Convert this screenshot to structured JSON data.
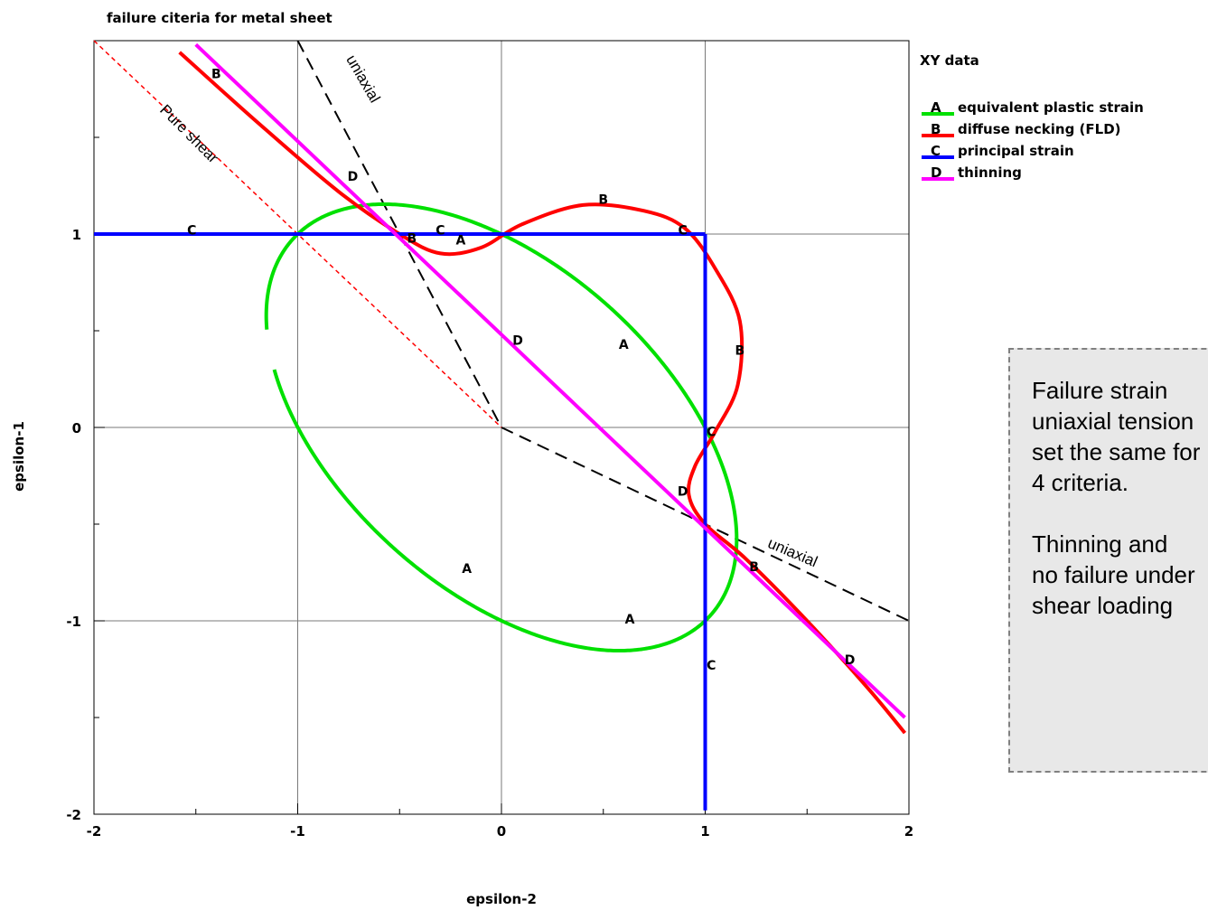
{
  "chart_data": {
    "type": "line",
    "title": "failure citeria for metal sheet",
    "xlabel": "epsilon-2",
    "ylabel": "epsilon-1",
    "xlim": [
      -2,
      2
    ],
    "ylim": [
      -2,
      2
    ],
    "x_ticks": [
      "-2",
      "-1",
      "0",
      "1",
      "2"
    ],
    "y_ticks": [
      "-2",
      "-1",
      "0",
      "1"
    ],
    "grid": true,
    "legend": {
      "title": "XY data",
      "position": "top-right",
      "entries": [
        {
          "key": "A",
          "label": "equivalent plastic strain",
          "color": "#00e000"
        },
        {
          "key": "B",
          "label": "diffuse necking (FLD)",
          "color": "#ff0000"
        },
        {
          "key": "C",
          "label": "principal strain",
          "color": "#0000ff"
        },
        {
          "key": "D",
          "label": "thinning",
          "color": "#ff00ff"
        }
      ]
    },
    "series": [
      {
        "key": "A",
        "color": "#00e000",
        "type": "ellipse",
        "center": [
          0,
          0
        ],
        "radii": [
          1.414,
          0.816
        ],
        "rotation_deg": -45,
        "gap": {
          "x": -1,
          "y_range": [
            0.3,
            0.5
          ]
        }
      },
      {
        "key": "B",
        "color": "#ff0000",
        "points": [
          [
            -1.58,
            1.94
          ],
          [
            -1.2,
            1.58
          ],
          [
            -0.8,
            1.22
          ],
          [
            -0.5,
            1.0
          ],
          [
            -0.3,
            0.9
          ],
          [
            -0.1,
            0.93
          ],
          [
            0.1,
            1.05
          ],
          [
            0.4,
            1.15
          ],
          [
            0.7,
            1.12
          ],
          [
            0.9,
            1.03
          ],
          [
            1.05,
            0.82
          ],
          [
            1.17,
            0.55
          ],
          [
            1.16,
            0.22
          ],
          [
            1.05,
            -0.02
          ],
          [
            0.95,
            -0.2
          ],
          [
            0.92,
            -0.35
          ],
          [
            1.0,
            -0.5
          ],
          [
            1.2,
            -0.68
          ],
          [
            1.5,
            -1.0
          ],
          [
            1.8,
            -1.35
          ],
          [
            1.98,
            -1.58
          ]
        ]
      },
      {
        "key": "C",
        "color": "#0000ff",
        "segments": [
          [
            [
              -2,
              1
            ],
            [
              1,
              1
            ]
          ],
          [
            [
              1,
              1
            ],
            [
              1,
              -1.98
            ]
          ]
        ]
      },
      {
        "key": "D",
        "color": "#ff00ff",
        "points": [
          [
            -1.5,
            1.98
          ],
          [
            1.98,
            -1.5
          ]
        ]
      }
    ],
    "reference_lines": [
      {
        "label": "uniaxial",
        "color": "#000000",
        "style": "dashed",
        "points": [
          [
            -1,
            2
          ],
          [
            0,
            0
          ]
        ]
      },
      {
        "label": "uniaxial",
        "color": "#000000",
        "style": "dashed",
        "points": [
          [
            0,
            0
          ],
          [
            2,
            -1
          ]
        ]
      },
      {
        "label": "Pure shear",
        "color": "#ff0000",
        "style": "dotted",
        "points": [
          [
            -2,
            2
          ],
          [
            0,
            0
          ]
        ]
      }
    ],
    "markers": [
      {
        "text": "A",
        "x": -0.2,
        "y": 0.97
      },
      {
        "text": "A",
        "x": 0.6,
        "y": 0.43
      },
      {
        "text": "A",
        "x": -0.17,
        "y": -0.73
      },
      {
        "text": "A",
        "x": 0.63,
        "y": -0.99
      },
      {
        "text": "B",
        "x": -1.4,
        "y": 1.83
      },
      {
        "text": "B",
        "x": -0.44,
        "y": 0.98
      },
      {
        "text": "B",
        "x": 0.5,
        "y": 1.18
      },
      {
        "text": "B",
        "x": 1.17,
        "y": 0.4
      },
      {
        "text": "B",
        "x": 1.24,
        "y": -0.72
      },
      {
        "text": "C",
        "x": -1.52,
        "y": 1.02
      },
      {
        "text": "C",
        "x": -0.3,
        "y": 1.02
      },
      {
        "text": "C",
        "x": 0.89,
        "y": 1.02
      },
      {
        "text": "C",
        "x": 1.03,
        "y": -0.02
      },
      {
        "text": "C",
        "x": 1.03,
        "y": -1.23
      },
      {
        "text": "D",
        "x": -0.73,
        "y": 1.3
      },
      {
        "text": "D",
        "x": 0.08,
        "y": 0.45
      },
      {
        "text": "D",
        "x": 0.89,
        "y": -0.33
      },
      {
        "text": "D",
        "x": 1.71,
        "y": -1.2
      }
    ],
    "annotations": [
      {
        "text": "uniaxial",
        "x": -0.7,
        "y": 1.79
      },
      {
        "text": "Pure shear",
        "x": -1.55,
        "y": 1.5
      },
      {
        "text": "uniaxial",
        "x": 1.42,
        "y": -0.67
      }
    ]
  },
  "note": {
    "paragraph_1": [
      "Failure strain",
      "uniaxial tension",
      "set the same for",
      "4 criteria."
    ],
    "paragraph_2": [
      "Thinning and",
      "no failure under",
      "shear loading"
    ]
  }
}
